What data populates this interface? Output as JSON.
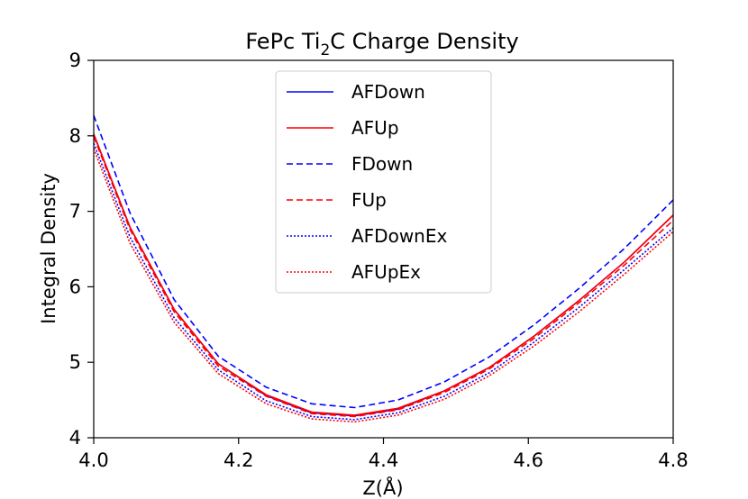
{
  "chart_data": {
    "type": "line",
    "title_main": "FePc Ti",
    "title_sub": "2",
    "title_rest": "C Charge Density",
    "xlabel": "Z(Å)",
    "ylabel": "Integral Density",
    "xlim": [
      4.0,
      4.8
    ],
    "ylim": [
      4,
      9
    ],
    "xticks": [
      "4.0",
      "4.2",
      "4.4",
      "4.6",
      "4.8"
    ],
    "yticks": [
      "4",
      "5",
      "6",
      "7",
      "8",
      "9"
    ],
    "grid": false,
    "legend_position": "upper center",
    "x": [
      4.0,
      4.05,
      4.111,
      4.172,
      4.238,
      4.301,
      4.36,
      4.42,
      4.484,
      4.546,
      4.607,
      4.669,
      4.733,
      4.8
    ],
    "series": [
      {
        "name": "AFDown",
        "color": "#0000ff",
        "dash": "solid",
        "values": [
          8.02,
          6.79,
          5.7,
          4.98,
          4.56,
          4.33,
          4.29,
          4.38,
          4.62,
          4.93,
          5.34,
          5.81,
          6.33,
          6.95
        ]
      },
      {
        "name": "AFUp",
        "color": "#ff0000",
        "dash": "solid",
        "values": [
          8.02,
          6.79,
          5.7,
          4.98,
          4.57,
          4.34,
          4.3,
          4.39,
          4.62,
          4.93,
          5.34,
          5.81,
          6.33,
          6.95
        ]
      },
      {
        "name": "FDown",
        "color": "#0000ff",
        "dash": "dashed",
        "values": [
          8.27,
          6.98,
          5.83,
          5.08,
          4.67,
          4.45,
          4.4,
          4.5,
          4.74,
          5.07,
          5.49,
          5.97,
          6.51,
          7.15
        ]
      },
      {
        "name": "FUp",
        "color": "#ff0000",
        "dash": "dashed",
        "values": [
          7.99,
          6.76,
          5.67,
          4.95,
          4.55,
          4.32,
          4.28,
          4.37,
          4.6,
          4.91,
          5.31,
          5.78,
          6.29,
          6.88
        ]
      },
      {
        "name": "AFDownEx",
        "color": "#0000ff",
        "dash": "dotted",
        "values": [
          7.9,
          6.66,
          5.59,
          4.9,
          4.49,
          4.28,
          4.24,
          4.33,
          4.55,
          4.86,
          5.26,
          5.72,
          6.23,
          6.78
        ]
      },
      {
        "name": "AFUpEx",
        "color": "#ff0000",
        "dash": "dotted",
        "values": [
          7.83,
          6.58,
          5.53,
          4.85,
          4.45,
          4.25,
          4.21,
          4.3,
          4.51,
          4.82,
          5.21,
          5.66,
          6.17,
          6.73
        ]
      }
    ]
  }
}
